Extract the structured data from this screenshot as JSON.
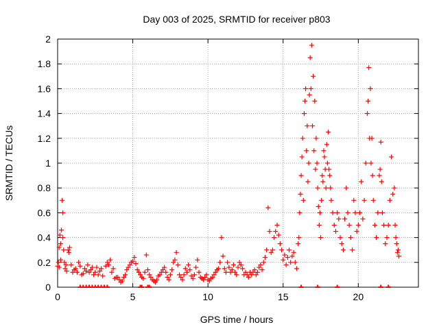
{
  "chart_data": {
    "type": "scatter",
    "title": "Day 003 of 2025, SRMTID for receiver p803",
    "xlabel": "GPS time / hours",
    "ylabel": "SRMTID / TECUs",
    "xlim": [
      0,
      24
    ],
    "ylim": [
      0,
      2
    ],
    "x_ticks": [
      0,
      5,
      10,
      15,
      20
    ],
    "x_tick_labels": [
      "0",
      "5",
      "10",
      "15",
      "20"
    ],
    "y_ticks": [
      0,
      0.2,
      0.4,
      0.6,
      0.8,
      1,
      1.2,
      1.4,
      1.6,
      1.8,
      2
    ],
    "y_tick_labels": [
      "0",
      "0.2",
      "0.4",
      "0.6",
      "0.8",
      "1",
      "1.2",
      "1.4",
      "1.6",
      "1.8",
      "2"
    ],
    "grid": true,
    "marker": "+",
    "color": "#ff0000",
    "series": [
      {
        "name": "SRMTID",
        "points": [
          [
            0.0,
            0.17
          ],
          [
            0.05,
            0.2
          ],
          [
            0.1,
            0.32
          ],
          [
            0.15,
            0.42
          ],
          [
            0.2,
            0.35
          ],
          [
            0.25,
            0.46
          ],
          [
            0.3,
            0.7
          ],
          [
            0.35,
            0.6
          ],
          [
            0.4,
            0.3
          ],
          [
            0.45,
            0.2
          ],
          [
            0.5,
            0.15
          ],
          [
            0.6,
            0.13
          ],
          [
            0.7,
            0.3
          ],
          [
            0.8,
            0.32
          ],
          [
            0.9,
            0.18
          ],
          [
            1.0,
            0.12
          ],
          [
            1.2,
            0.15
          ],
          [
            1.4,
            0.2
          ],
          [
            1.6,
            0.1
          ],
          [
            1.8,
            0.15
          ],
          [
            2.0,
            0.18
          ],
          [
            2.2,
            0.14
          ],
          [
            2.4,
            0.1
          ],
          [
            2.6,
            0.16
          ],
          [
            2.8,
            0.13
          ],
          [
            3.0,
            0.09
          ],
          [
            3.3,
            0.2
          ],
          [
            3.5,
            0.22
          ],
          [
            3.7,
            0.15
          ],
          [
            3.9,
            0.08
          ],
          [
            4.1,
            0.06
          ],
          [
            4.3,
            0.05
          ],
          [
            4.5,
            0.1
          ],
          [
            4.7,
            0.16
          ],
          [
            4.9,
            0.2
          ],
          [
            5.1,
            0.24
          ],
          [
            5.3,
            0.14
          ],
          [
            5.5,
            0.1
          ],
          [
            5.7,
            0.07
          ],
          [
            5.9,
            0.26
          ],
          [
            6.1,
            0.1
          ],
          [
            6.3,
            0.06
          ],
          [
            6.5,
            0.04
          ],
          [
            6.7,
            0.09
          ],
          [
            6.9,
            0.12
          ],
          [
            7.1,
            0.16
          ],
          [
            7.3,
            0.08
          ],
          [
            7.5,
            0.1
          ],
          [
            7.7,
            0.2
          ],
          [
            7.9,
            0.28
          ],
          [
            8.1,
            0.1
          ],
          [
            8.3,
            0.06
          ],
          [
            8.5,
            0.15
          ],
          [
            8.7,
            0.18
          ],
          [
            8.9,
            0.09
          ],
          [
            9.1,
            0.1
          ],
          [
            9.3,
            0.22
          ],
          [
            9.5,
            0.08
          ],
          [
            9.7,
            0.06
          ],
          [
            9.9,
            0.1
          ],
          [
            10.1,
            0.05
          ],
          [
            10.3,
            0.08
          ],
          [
            10.5,
            0.12
          ],
          [
            10.7,
            0.15
          ],
          [
            10.9,
            0.4
          ],
          [
            11.1,
            0.15
          ],
          [
            11.3,
            0.2
          ],
          [
            11.5,
            0.12
          ],
          [
            11.7,
            0.18
          ],
          [
            11.9,
            0.1
          ],
          [
            12.1,
            0.2
          ],
          [
            12.3,
            0.15
          ],
          [
            12.5,
            0.12
          ],
          [
            12.7,
            0.08
          ],
          [
            12.9,
            0.1
          ],
          [
            13.1,
            0.14
          ],
          [
            13.3,
            0.12
          ],
          [
            13.5,
            0.18
          ],
          [
            13.7,
            0.2
          ],
          [
            13.9,
            0.3
          ],
          [
            14.0,
            0.64
          ],
          [
            14.1,
            0.45
          ],
          [
            14.2,
            0.28
          ],
          [
            14.4,
            0.4
          ],
          [
            14.6,
            0.5
          ],
          [
            14.8,
            0.35
          ],
          [
            15.0,
            0.22
          ],
          [
            15.2,
            0.18
          ],
          [
            15.4,
            0.3
          ],
          [
            15.6,
            0.25
          ],
          [
            15.8,
            0.2
          ],
          [
            16.0,
            0.35
          ],
          [
            16.1,
            0.6
          ],
          [
            16.2,
            0.9
          ],
          [
            16.3,
            1.2
          ],
          [
            16.4,
            1.4
          ],
          [
            16.5,
            1.6
          ],
          [
            16.6,
            1.3
          ],
          [
            16.7,
            1.0
          ],
          [
            16.8,
            1.85
          ],
          [
            16.9,
            1.95
          ],
          [
            17.0,
            1.7
          ],
          [
            17.1,
            1.5
          ],
          [
            17.2,
            1.2
          ],
          [
            17.3,
            0.8
          ],
          [
            17.4,
            0.5
          ],
          [
            17.5,
            0.4
          ],
          [
            17.6,
            0.9
          ],
          [
            17.7,
            1.1
          ],
          [
            17.8,
            0.95
          ],
          [
            17.9,
            1.15
          ],
          [
            18.0,
            1.25
          ],
          [
            18.1,
            0.9
          ],
          [
            18.2,
            0.7
          ],
          [
            18.4,
            0.5
          ],
          [
            18.6,
            0.6
          ],
          [
            18.8,
            0.4
          ],
          [
            19.0,
            0.3
          ],
          [
            19.2,
            0.8
          ],
          [
            19.4,
            0.5
          ],
          [
            19.6,
            0.3
          ],
          [
            19.8,
            0.6
          ],
          [
            20.0,
            0.5
          ],
          [
            20.2,
            0.85
          ],
          [
            20.4,
            0.7
          ],
          [
            20.6,
            1.4
          ],
          [
            20.7,
            1.77
          ],
          [
            20.8,
            1.6
          ],
          [
            20.9,
            1.2
          ],
          [
            21.0,
            0.7
          ],
          [
            21.2,
            0.4
          ],
          [
            21.4,
            0.9
          ],
          [
            21.5,
            1.17
          ],
          [
            21.6,
            0.6
          ],
          [
            21.8,
            0.35
          ],
          [
            22.0,
            0.5
          ],
          [
            22.2,
            1.05
          ],
          [
            22.4,
            0.8
          ],
          [
            22.5,
            0.4
          ],
          [
            22.6,
            0.28
          ],
          [
            22.7,
            0.25
          ],
          [
            0.1,
            0.16
          ],
          [
            0.2,
            0.22
          ],
          [
            0.35,
            0.4
          ],
          [
            0.55,
            0.18
          ],
          [
            0.75,
            0.28
          ],
          [
            1.1,
            0.14
          ],
          [
            1.3,
            0.12
          ],
          [
            1.5,
            0.17
          ],
          [
            1.7,
            0.11
          ],
          [
            1.9,
            0.13
          ],
          [
            2.1,
            0.12
          ],
          [
            2.3,
            0.16
          ],
          [
            2.5,
            0.12
          ],
          [
            2.7,
            0.1
          ],
          [
            2.9,
            0.15
          ],
          [
            3.2,
            0.17
          ],
          [
            3.4,
            0.18
          ],
          [
            3.6,
            0.12
          ],
          [
            3.8,
            0.07
          ],
          [
            4.0,
            0.08
          ],
          [
            4.2,
            0.04
          ],
          [
            4.4,
            0.08
          ],
          [
            4.6,
            0.14
          ],
          [
            4.8,
            0.18
          ],
          [
            5.0,
            0.21
          ],
          [
            5.2,
            0.19
          ],
          [
            5.4,
            0.12
          ],
          [
            5.6,
            0.08
          ],
          [
            5.8,
            0.12
          ],
          [
            6.0,
            0.14
          ],
          [
            6.2,
            0.08
          ],
          [
            6.4,
            0.05
          ],
          [
            6.6,
            0.06
          ],
          [
            6.8,
            0.1
          ],
          [
            7.0,
            0.14
          ],
          [
            7.2,
            0.12
          ],
          [
            7.4,
            0.06
          ],
          [
            7.6,
            0.14
          ],
          [
            7.8,
            0.22
          ],
          [
            8.0,
            0.18
          ],
          [
            8.2,
            0.08
          ],
          [
            8.4,
            0.1
          ],
          [
            8.6,
            0.12
          ],
          [
            8.8,
            0.14
          ],
          [
            9.0,
            0.07
          ],
          [
            9.2,
            0.16
          ],
          [
            9.4,
            0.12
          ],
          [
            9.6,
            0.07
          ],
          [
            9.8,
            0.08
          ],
          [
            10.0,
            0.06
          ],
          [
            10.2,
            0.07
          ],
          [
            10.4,
            0.1
          ],
          [
            10.6,
            0.14
          ],
          [
            10.8,
            0.2
          ],
          [
            11.0,
            0.25
          ],
          [
            11.2,
            0.12
          ],
          [
            11.4,
            0.16
          ],
          [
            11.6,
            0.14
          ],
          [
            11.8,
            0.12
          ],
          [
            12.0,
            0.16
          ],
          [
            12.2,
            0.18
          ],
          [
            12.4,
            0.1
          ],
          [
            12.6,
            0.1
          ],
          [
            12.8,
            0.12
          ],
          [
            13.0,
            0.12
          ],
          [
            13.2,
            0.1
          ],
          [
            13.4,
            0.16
          ],
          [
            13.6,
            0.14
          ],
          [
            13.8,
            0.24
          ],
          [
            14.3,
            0.3
          ],
          [
            14.5,
            0.45
          ],
          [
            14.7,
            0.42
          ],
          [
            14.9,
            0.3
          ],
          [
            15.1,
            0.26
          ],
          [
            15.3,
            0.24
          ],
          [
            15.5,
            0.2
          ],
          [
            15.7,
            0.28
          ],
          [
            15.9,
            0.15
          ],
          [
            16.05,
            0.4
          ],
          [
            16.15,
            0.75
          ],
          [
            16.25,
            1.05
          ],
          [
            16.35,
            0.7
          ],
          [
            16.45,
            1.5
          ],
          [
            16.55,
            1.1
          ],
          [
            16.65,
            0.85
          ],
          [
            16.75,
            1.55
          ],
          [
            16.85,
            1.6
          ],
          [
            16.95,
            1.3
          ],
          [
            17.05,
            1.1
          ],
          [
            17.15,
            0.95
          ],
          [
            17.25,
            1.0
          ],
          [
            17.35,
            0.65
          ],
          [
            17.45,
            0.6
          ],
          [
            17.55,
            0.7
          ],
          [
            17.65,
            0.85
          ],
          [
            17.75,
            1.05
          ],
          [
            17.85,
            0.8
          ],
          [
            17.95,
            1.0
          ],
          [
            18.05,
            0.95
          ],
          [
            18.15,
            0.8
          ],
          [
            18.3,
            0.6
          ],
          [
            18.5,
            0.45
          ],
          [
            18.7,
            0.55
          ],
          [
            18.9,
            0.35
          ],
          [
            19.1,
            0.55
          ],
          [
            19.3,
            0.6
          ],
          [
            19.5,
            0.4
          ],
          [
            19.7,
            0.7
          ],
          [
            19.9,
            0.45
          ],
          [
            20.1,
            0.6
          ],
          [
            20.3,
            0.55
          ],
          [
            20.5,
            1.0
          ],
          [
            20.65,
            1.5
          ],
          [
            20.75,
            1.2
          ],
          [
            20.85,
            1.0
          ],
          [
            20.95,
            0.9
          ],
          [
            21.1,
            0.5
          ],
          [
            21.3,
            0.6
          ],
          [
            21.45,
            0.95
          ],
          [
            21.55,
            0.85
          ],
          [
            21.7,
            0.5
          ],
          [
            21.9,
            0.4
          ],
          [
            22.1,
            0.7
          ],
          [
            22.3,
            0.75
          ],
          [
            22.45,
            0.5
          ],
          [
            22.55,
            0.35
          ],
          [
            22.65,
            0.3
          ]
        ]
      }
    ],
    "zero_markers_x": [
      1.5,
      1.7,
      1.9,
      2.1,
      2.3,
      2.5,
      2.7,
      2.9,
      3.1,
      3.3,
      5.5,
      5.6,
      6.0,
      6.1,
      16.2,
      17.3,
      18.6,
      21.5,
      22.0
    ]
  }
}
